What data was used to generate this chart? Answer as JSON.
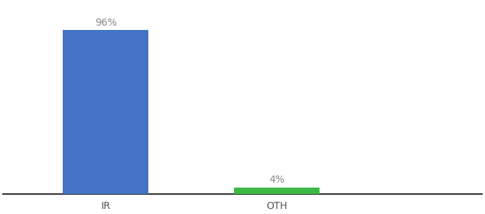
{
  "categories": [
    "IR",
    "OTH"
  ],
  "values": [
    96,
    4
  ],
  "bar_colors": [
    "#4472c4",
    "#3cb944"
  ],
  "label_texts": [
    "96%",
    "4%"
  ],
  "background_color": "#ffffff",
  "ylim": [
    0,
    112
  ],
  "bar_width": 0.5,
  "xlabel_fontsize": 10,
  "label_fontsize": 10,
  "label_color": "#888888",
  "axis_line_color": "#000000",
  "figsize": [
    6.8,
    3.0
  ],
  "dpi": 100,
  "x_positions": [
    1,
    2
  ],
  "xlim": [
    0.4,
    3.2
  ]
}
